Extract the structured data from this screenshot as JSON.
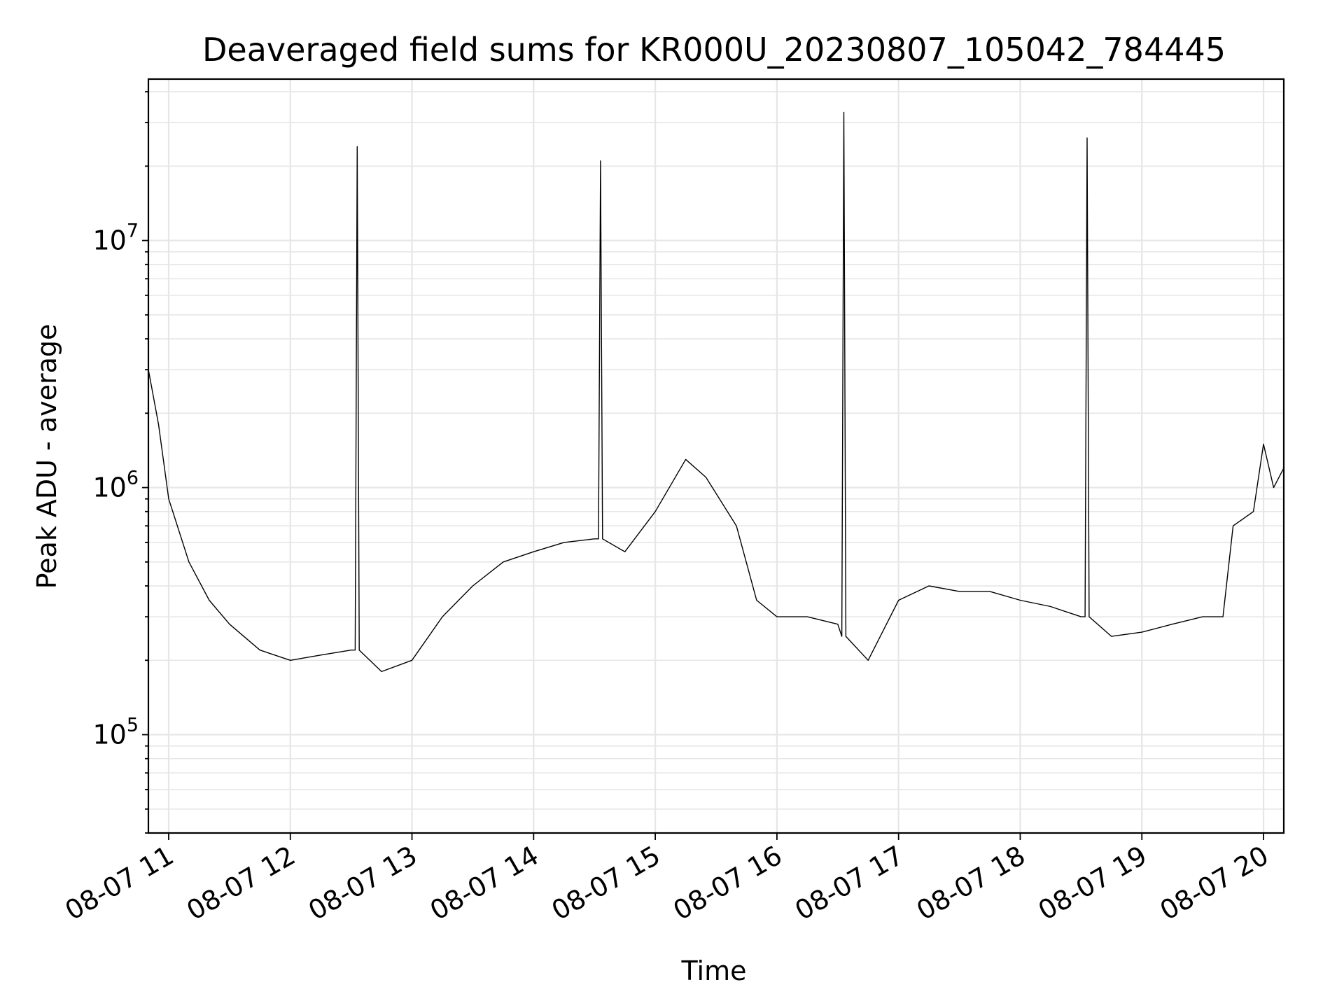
{
  "chart_data": {
    "type": "line",
    "title": "Deaveraged field sums for KR000U_20230807_105042_784445",
    "xlabel": "Time",
    "ylabel": "Peak ADU - average",
    "yscale": "log",
    "grid": true,
    "line_color": "#000000",
    "grid_color": "#e6e6e6",
    "xlim": [
      "2023-08-07 10:50",
      "2023-08-07 20:10"
    ],
    "ylim": [
      40000,
      45000000
    ],
    "x_ticks": [
      "08-07 11",
      "08-07 12",
      "08-07 13",
      "08-07 14",
      "08-07 15",
      "08-07 16",
      "08-07 17",
      "08-07 18",
      "08-07 19",
      "08-07 20"
    ],
    "x_tick_times": [
      "2023-08-07 11:00",
      "2023-08-07 12:00",
      "2023-08-07 13:00",
      "2023-08-07 14:00",
      "2023-08-07 15:00",
      "2023-08-07 16:00",
      "2023-08-07 17:00",
      "2023-08-07 18:00",
      "2023-08-07 19:00",
      "2023-08-07 20:00"
    ],
    "y_ticks": [
      {
        "value": 100000,
        "base": "10",
        "exp": "5"
      },
      {
        "value": 1000000,
        "base": "10",
        "exp": "6"
      },
      {
        "value": 10000000,
        "base": "10",
        "exp": "7"
      }
    ],
    "series": [
      {
        "x": [
          "2023-08-07 10:50",
          "2023-08-07 10:55",
          "2023-08-07 11:00",
          "2023-08-07 11:10",
          "2023-08-07 11:20",
          "2023-08-07 11:30",
          "2023-08-07 11:45",
          "2023-08-07 12:00",
          "2023-08-07 12:15",
          "2023-08-07 12:30",
          "2023-08-07 12:32",
          "2023-08-07 12:33",
          "2023-08-07 12:34",
          "2023-08-07 12:45",
          "2023-08-07 13:00",
          "2023-08-07 13:15",
          "2023-08-07 13:30",
          "2023-08-07 13:45",
          "2023-08-07 14:00",
          "2023-08-07 14:15",
          "2023-08-07 14:30",
          "2023-08-07 14:32",
          "2023-08-07 14:33",
          "2023-08-07 14:34",
          "2023-08-07 14:45",
          "2023-08-07 15:00",
          "2023-08-07 15:15",
          "2023-08-07 15:25",
          "2023-08-07 15:40",
          "2023-08-07 15:50",
          "2023-08-07 16:00",
          "2023-08-07 16:15",
          "2023-08-07 16:30",
          "2023-08-07 16:32",
          "2023-08-07 16:33",
          "2023-08-07 16:34",
          "2023-08-07 16:45",
          "2023-08-07 17:00",
          "2023-08-07 17:15",
          "2023-08-07 17:30",
          "2023-08-07 17:45",
          "2023-08-07 18:00",
          "2023-08-07 18:15",
          "2023-08-07 18:30",
          "2023-08-07 18:32",
          "2023-08-07 18:33",
          "2023-08-07 18:34",
          "2023-08-07 18:45",
          "2023-08-07 19:00",
          "2023-08-07 19:15",
          "2023-08-07 19:30",
          "2023-08-07 19:40",
          "2023-08-07 19:45",
          "2023-08-07 19:55",
          "2023-08-07 20:00",
          "2023-08-07 20:05",
          "2023-08-07 20:10"
        ],
        "y": [
          3000000,
          1800000,
          900000,
          500000,
          350000,
          280000,
          220000,
          200000,
          210000,
          220000,
          220000,
          24000000,
          220000,
          180000,
          200000,
          300000,
          400000,
          500000,
          550000,
          600000,
          620000,
          620000,
          21000000,
          620000,
          550000,
          800000,
          1300000,
          1100000,
          700000,
          350000,
          300000,
          300000,
          280000,
          250000,
          33000000,
          250000,
          200000,
          350000,
          400000,
          380000,
          380000,
          350000,
          330000,
          300000,
          300000,
          26000000,
          300000,
          250000,
          260000,
          280000,
          300000,
          300000,
          700000,
          800000,
          1500000,
          1000000,
          1200000
        ]
      }
    ]
  }
}
